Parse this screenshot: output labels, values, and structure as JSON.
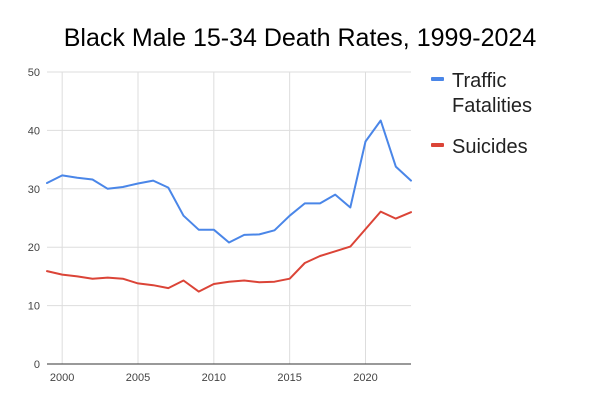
{
  "chart_data": {
    "type": "line",
    "title": "Black Male 15-34 Death Rates, 1999-2024",
    "xlabel": "",
    "ylabel": "",
    "xlim": [
      1999,
      2023
    ],
    "ylim": [
      0,
      50
    ],
    "x_ticks": [
      "2000",
      "2005",
      "2010",
      "2015",
      "2020"
    ],
    "y_ticks": [
      "0",
      "10",
      "20",
      "30",
      "40",
      "50"
    ],
    "grid": true,
    "legend_position": "right",
    "x": [
      1999,
      2000,
      2001,
      2002,
      2003,
      2004,
      2005,
      2006,
      2007,
      2008,
      2009,
      2010,
      2011,
      2012,
      2013,
      2014,
      2015,
      2016,
      2017,
      2018,
      2019,
      2020,
      2021,
      2022,
      2023
    ],
    "series": [
      {
        "name_lines": [
          "Traffic",
          "Fatalities"
        ],
        "color": "#4a86e8",
        "values": [
          31.0,
          32.3,
          31.9,
          31.6,
          30.0,
          30.3,
          30.9,
          31.4,
          30.2,
          25.4,
          23.0,
          23.0,
          20.8,
          22.1,
          22.2,
          22.9,
          25.4,
          27.5,
          27.5,
          29.0,
          26.8,
          38.1,
          41.7,
          33.8,
          31.4
        ]
      },
      {
        "name_lines": [
          "Suicides"
        ],
        "color": "#db4437",
        "values": [
          15.9,
          15.3,
          15.0,
          14.6,
          14.8,
          14.6,
          13.8,
          13.5,
          13.0,
          14.3,
          12.4,
          13.7,
          14.1,
          14.3,
          14.0,
          14.1,
          14.6,
          17.3,
          18.5,
          19.3,
          20.1,
          23.1,
          26.1,
          24.9,
          26.0
        ]
      }
    ]
  }
}
